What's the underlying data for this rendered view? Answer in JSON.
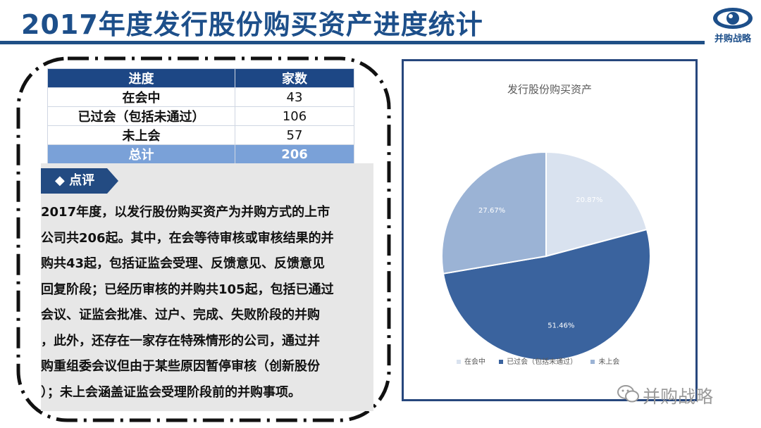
{
  "header": {
    "title": "2017年度发行股份购买资产进度统计",
    "logo_text": "并购战略"
  },
  "table": {
    "headers": [
      "进度",
      "家数"
    ],
    "rows": [
      {
        "label": "在会中",
        "value": "43"
      },
      {
        "label": "已过会（包括未通过）",
        "value": "106"
      },
      {
        "label": "未上会",
        "value": "57"
      }
    ],
    "total": {
      "label": "总计",
      "value": "206"
    }
  },
  "comment": {
    "badge": "◆ 点评",
    "text": "2017年度，以发行股份购买资产为并购方式的上市\n公司共206起。其中，在会等待审核或审核结果的并\n购共43起，包括证监会受理、反馈意见、反馈意见\n回复阶段；已经历审核的并购共105起，包括已通过\n会议、证监会批准、过户、完成、失败阶段的并购\n，此外，还存在一家存在特殊情形的公司，通过并\n购重组委会议但由于某些原因暂停审核（创新股份\n）；未上会涵盖证监会受理阶段前的并购事项。"
  },
  "chart_data": {
    "type": "pie",
    "title": "发行股份购买资产",
    "labels": [
      "在会中",
      "已过会（包括未通过）",
      "未上会"
    ],
    "values": [
      20.87,
      51.46,
      27.67
    ],
    "data_labels": [
      "20.87%",
      "51.46%",
      "27.67%"
    ],
    "colors": [
      "#d9e2ef",
      "#3a639e",
      "#9bb3d5"
    ],
    "legend_position": "bottom"
  },
  "watermark": "并购战略"
}
